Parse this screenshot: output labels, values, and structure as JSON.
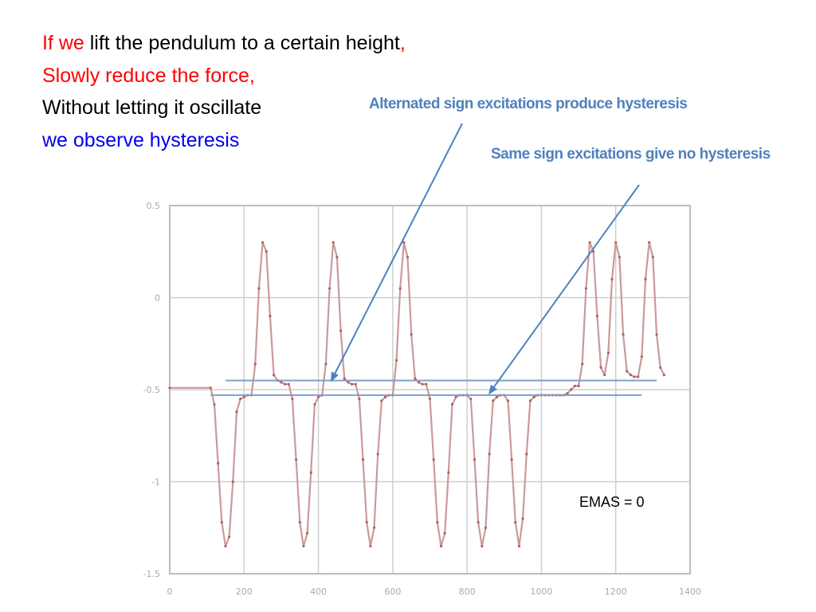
{
  "text": {
    "line1_a": "If we",
    "line1_b": " lift the pendulum to a certain height",
    "line1_c": ",",
    "line2": "Slowly reduce the force,",
    "line3": "Without letting it oscillate",
    "line4": "we observe hysteresis"
  },
  "callouts": {
    "alternated": "Alternated sign excitations produce hysteresis",
    "same": "Same sign excitations give no hysteresis"
  },
  "annotation": "EMAS = 0",
  "colors": {
    "red": "#ff0000",
    "blue": "#0000ee",
    "callout": "#4f81bd",
    "signal": "#cc9999"
  },
  "chart_data": {
    "type": "line",
    "title": "",
    "xlabel": "",
    "ylabel": "",
    "xlim": [
      0,
      1400
    ],
    "ylim": [
      -1.5,
      0.5
    ],
    "xticks": [
      0,
      200,
      400,
      600,
      800,
      1000,
      1200,
      1400
    ],
    "xtick_labels": [
      "0",
      "200",
      "400",
      "600",
      "800",
      "1000",
      "1200",
      "1400"
    ],
    "yticks": [
      0.5,
      0,
      -0.5,
      -1,
      -1.5
    ],
    "ytick_labels": [
      "0.5",
      "0",
      "-0.5",
      "-1",
      "-1.5"
    ],
    "grid": true,
    "series": [
      {
        "x": [
          0,
          110,
          120,
          130,
          140,
          150,
          160,
          170,
          180,
          190,
          200,
          210,
          220,
          230,
          240,
          250,
          260,
          270,
          280,
          290,
          300,
          310,
          320,
          330,
          340,
          350,
          360,
          370,
          380,
          390,
          400,
          410,
          420,
          430,
          440,
          450,
          460,
          470,
          480,
          490,
          500,
          510,
          520,
          530,
          540,
          550,
          560,
          570,
          580,
          590,
          600,
          610,
          620,
          630,
          640,
          650,
          660,
          670,
          680,
          690,
          700,
          710,
          720,
          730,
          740,
          750,
          760,
          770,
          780,
          790,
          800,
          810,
          820,
          830,
          840,
          850,
          860,
          870,
          880,
          890,
          900,
          910,
          920,
          930,
          940,
          950,
          960,
          970,
          980,
          990,
          1000,
          1010,
          1020,
          1030,
          1040,
          1050,
          1060,
          1070,
          1080,
          1090,
          1100,
          1110,
          1120,
          1130,
          1140,
          1150,
          1160,
          1170,
          1180,
          1190,
          1200,
          1210,
          1220,
          1230,
          1240,
          1250,
          1260,
          1270,
          1280,
          1290,
          1300,
          1310,
          1320,
          1330
        ],
        "y": [
          -0.49,
          -0.49,
          -0.58,
          -0.9,
          -1.22,
          -1.35,
          -1.3,
          -1.0,
          -0.62,
          -0.55,
          -0.54,
          -0.53,
          -0.53,
          -0.36,
          0.05,
          0.3,
          0.25,
          -0.1,
          -0.42,
          -0.45,
          -0.46,
          -0.47,
          -0.47,
          -0.55,
          -0.88,
          -1.22,
          -1.35,
          -1.28,
          -0.95,
          -0.58,
          -0.54,
          -0.53,
          -0.36,
          0.05,
          0.3,
          0.22,
          -0.18,
          -0.44,
          -0.46,
          -0.47,
          -0.47,
          -0.55,
          -0.88,
          -1.22,
          -1.35,
          -1.25,
          -0.85,
          -0.56,
          -0.54,
          -0.53,
          -0.53,
          -0.34,
          0.05,
          0.3,
          0.22,
          -0.2,
          -0.44,
          -0.46,
          -0.47,
          -0.47,
          -0.55,
          -0.88,
          -1.22,
          -1.35,
          -1.28,
          -0.95,
          -0.58,
          -0.54,
          -0.53,
          -0.53,
          -0.53,
          -0.55,
          -0.88,
          -1.22,
          -1.35,
          -1.25,
          -0.85,
          -0.56,
          -0.54,
          -0.53,
          -0.53,
          -0.56,
          -0.88,
          -1.22,
          -1.35,
          -1.2,
          -0.85,
          -0.56,
          -0.54,
          -0.53,
          -0.53,
          -0.53,
          -0.53,
          -0.53,
          -0.53,
          -0.53,
          -0.53,
          -0.52,
          -0.5,
          -0.48,
          -0.48,
          -0.36,
          0.05,
          0.3,
          0.25,
          -0.1,
          -0.38,
          -0.42,
          -0.3,
          0.1,
          0.3,
          0.22,
          -0.2,
          -0.4,
          -0.42,
          -0.43,
          -0.43,
          -0.32,
          0.1,
          0.3,
          0.22,
          -0.2,
          -0.38,
          -0.42
        ]
      }
    ],
    "reference_lines": [
      {
        "x": [
          150,
          1310
        ],
        "y": -0.45
      },
      {
        "x": [
          110,
          1270
        ],
        "y": -0.53
      }
    ],
    "arrows": [
      {
        "label": "alternated",
        "to": [
          435,
          -0.45
        ]
      },
      {
        "label": "same",
        "to": [
          860,
          -0.52
        ]
      }
    ]
  }
}
